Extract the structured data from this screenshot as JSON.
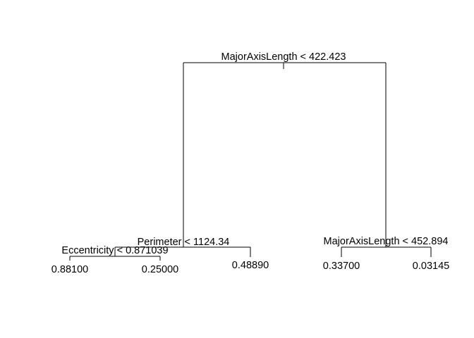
{
  "tree": {
    "root_split": "MajorAxisLength < 422.423",
    "left_split": "Perimeter < 1124.34",
    "left_left_split": "Eccentricity < 0.871039",
    "right_split": "MajorAxisLength < 452.894",
    "leaves": {
      "ll_left": "0.88100",
      "ll_right": "0.25000",
      "left_right": "0.48890",
      "right_left": "0.33700",
      "right_right": "0.03145"
    }
  }
}
